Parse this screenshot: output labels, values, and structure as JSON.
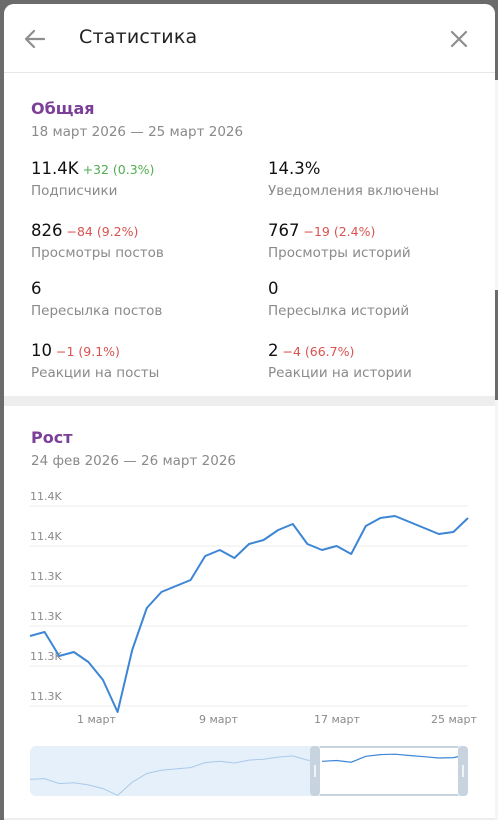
{
  "header": {
    "title": "Статистика",
    "back_icon": "arrow-left-icon",
    "close_icon": "close-icon"
  },
  "overview": {
    "title": "Общая",
    "range": "18 март 2026 — 25 март 2026",
    "stats": [
      {
        "value": "11.4K",
        "delta": "+32 (0.3%)",
        "delta_type": "pos",
        "label": "Подписчики"
      },
      {
        "value": "14.3%",
        "delta": "",
        "delta_type": "",
        "label": "Уведомления включены"
      },
      {
        "value": "826",
        "delta": "−84 (9.2%)",
        "delta_type": "neg",
        "label": "Просмотры постов"
      },
      {
        "value": "767",
        "delta": "−19 (2.4%)",
        "delta_type": "neg",
        "label": "Просмотры историй"
      },
      {
        "value": "6",
        "delta": "",
        "delta_type": "",
        "label": "Пересылка постов"
      },
      {
        "value": "0",
        "delta": "",
        "delta_type": "",
        "label": "Пересылка историй"
      },
      {
        "value": "10",
        "delta": "−1 (9.1%)",
        "delta_type": "neg",
        "label": "Реакции на посты"
      },
      {
        "value": "2",
        "delta": "−4 (66.7%)",
        "delta_type": "neg",
        "label": "Реакции на истории"
      }
    ]
  },
  "growth": {
    "title": "Рост",
    "range": "24 фев 2026 — 26 март 2026"
  },
  "colors": {
    "accent": "#7b3f98",
    "line": "#3d86d6",
    "positive": "#4fae4e",
    "negative": "#d9534f"
  },
  "chart_data": {
    "type": "line",
    "title": "Рост",
    "y_tick_labels": [
      "11.4K",
      "11.4K",
      "11.3K",
      "11.3K",
      "11.3K",
      "11.3K"
    ],
    "x_tick_labels": [
      "1 март",
      "9 март",
      "17 март",
      "25 март"
    ],
    "ylim": [
      11296,
      11396
    ],
    "grid": true,
    "series": [
      {
        "values": [
          11326,
          11328,
          11316,
          11318,
          11313,
          11304,
          11288,
          11319,
          11340,
          11348,
          11351,
          11354,
          11366,
          11369,
          11365,
          11372,
          11374,
          11379,
          11382,
          11372,
          11369,
          11371,
          11367,
          11381,
          11385,
          11386,
          11383,
          11380,
          11377,
          11378,
          11385
        ]
      }
    ]
  }
}
